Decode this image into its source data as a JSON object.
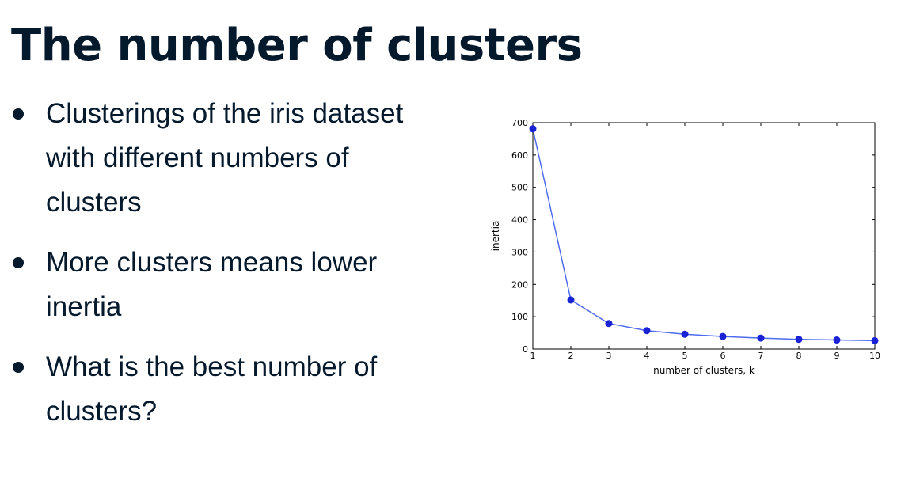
{
  "slide": {
    "title": "The number of clusters",
    "bullets": [
      "Clusterings of the iris dataset with different numbers of clusters",
      "More clusters means lower inertia",
      "What is the best number of clusters?"
    ]
  },
  "chart_data": {
    "type": "line",
    "xlabel": "number of clusters, k",
    "ylabel": "inertia",
    "xlim": [
      1,
      10
    ],
    "ylim": [
      0,
      700
    ],
    "x_ticks": [
      1,
      2,
      3,
      4,
      5,
      6,
      7,
      8,
      9,
      10
    ],
    "y_ticks": [
      0,
      100,
      200,
      300,
      400,
      500,
      600,
      700
    ],
    "grid": false,
    "marker": "circle",
    "line_color": "#4f6bf0",
    "marker_color": "#1a22d6",
    "x": [
      1,
      2,
      3,
      4,
      5,
      6,
      7,
      8,
      9,
      10
    ],
    "series": [
      {
        "values": [
          681,
          152,
          79,
          57,
          46,
          39,
          34,
          30,
          28,
          26
        ]
      }
    ]
  }
}
